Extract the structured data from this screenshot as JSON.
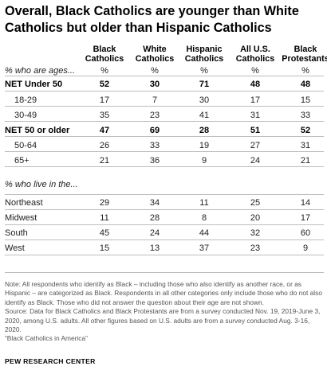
{
  "title": "Overall, Black Catholics are younger than White Catholics but older than Hispanic Catholics",
  "columns": [
    "Black Catholics",
    "White Catholics",
    "Hispanic Catholics",
    "All U.S. Catholics",
    "Black Protestants"
  ],
  "section_ages_label": "% who are ages...",
  "section_region_label": "% who live in the...",
  "percent_symbol": "%",
  "age_rows": [
    {
      "label": "NET Under 50",
      "bold": true,
      "values": [
        "52",
        "30",
        "71",
        "48",
        "48"
      ]
    },
    {
      "label": "18-29",
      "bold": false,
      "values": [
        "17",
        "7",
        "30",
        "17",
        "15"
      ]
    },
    {
      "label": "30-49",
      "bold": false,
      "values": [
        "35",
        "23",
        "41",
        "31",
        "33"
      ]
    },
    {
      "label": "NET 50 or older",
      "bold": true,
      "values": [
        "47",
        "69",
        "28",
        "51",
        "52"
      ]
    },
    {
      "label": "50-64",
      "bold": false,
      "values": [
        "26",
        "33",
        "19",
        "27",
        "31"
      ]
    },
    {
      "label": "65+",
      "bold": false,
      "values": [
        "21",
        "36",
        "9",
        "24",
        "21"
      ]
    }
  ],
  "region_rows": [
    {
      "label": "Northeast",
      "values": [
        "29",
        "34",
        "11",
        "25",
        "14"
      ]
    },
    {
      "label": "Midwest",
      "values": [
        "11",
        "28",
        "8",
        "20",
        "17"
      ]
    },
    {
      "label": "South",
      "values": [
        "45",
        "24",
        "44",
        "32",
        "60"
      ]
    },
    {
      "label": "West",
      "values": [
        "15",
        "13",
        "37",
        "23",
        "9"
      ]
    }
  ],
  "note": "Note: All respondents who identify as Black – including those who also identify as another race, or as Hispanic – are categorized as Black. Respondents in all other categories only include those who do not also identify as Black. Those who did not answer the question about their age are not shown.",
  "source": "Source: Data for Black Catholics and Black Protestants are from a survey conducted Nov. 19, 2019-June 3, 2020, among U.S. adults. All other figures based on U.S. adults are from a survey conducted Aug. 3-16, 2020.",
  "report": "“Black Catholics in America”",
  "org": "PEW RESEARCH CENTER"
}
